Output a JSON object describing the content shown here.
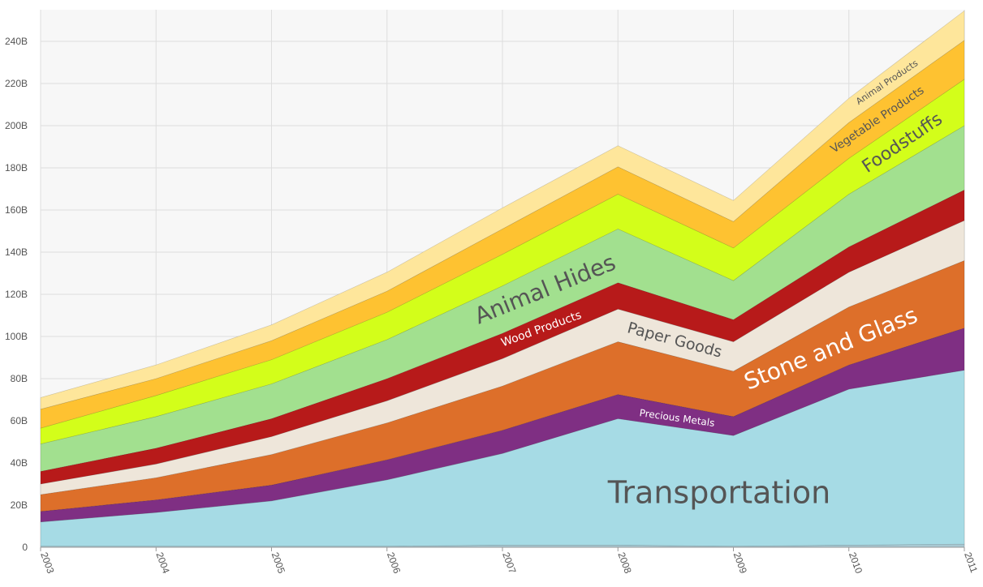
{
  "chart_data": {
    "type": "area",
    "stacked": true,
    "title": "",
    "xlabel": "",
    "ylabel": "",
    "x": [
      "2003",
      "2004",
      "2005",
      "2006",
      "2007",
      "2008",
      "2009",
      "2010",
      "2011"
    ],
    "ylim": [
      0,
      255
    ],
    "yticks": [
      0,
      20,
      40,
      60,
      80,
      100,
      120,
      140,
      160,
      180,
      200,
      220,
      240
    ],
    "ytick_labels": [
      "0",
      "20B",
      "40B",
      "60B",
      "80B",
      "100B",
      "120B",
      "140B",
      "160B",
      "180B",
      "200B",
      "220B",
      "240B"
    ],
    "grid": true,
    "legend": "none",
    "series": [
      {
        "color": "#a8c8d2",
        "values": [
          0.5,
          0.5,
          0.5,
          0.5,
          1,
          1,
          0.5,
          1,
          1.5
        ]
      },
      {
        "name": "Transportation",
        "color": "#a6dbe5",
        "values": [
          11.5,
          16,
          21.5,
          31.5,
          43.5,
          60,
          52.5,
          74,
          82.5
        ]
      },
      {
        "name": "Precious Metals",
        "color": "#7f2f83",
        "values": [
          5,
          6,
          7.5,
          9.5,
          11,
          11.5,
          9,
          11.5,
          20
        ]
      },
      {
        "name": "Stone and Glass",
        "color": "#dd6f2a",
        "values": [
          8,
          10.5,
          14.5,
          17.5,
          21,
          25,
          21.5,
          27.5,
          32
        ]
      },
      {
        "name": "Paper Goods",
        "color": "#eee6da",
        "values": [
          5,
          6.5,
          8.5,
          10.5,
          13,
          15.5,
          14,
          16.5,
          19
        ]
      },
      {
        "name": "Wood Products",
        "color": "#b71a1a",
        "values": [
          6,
          7.5,
          8.5,
          10.5,
          12,
          12.5,
          10.5,
          12,
          14.5
        ]
      },
      {
        "name": "Animal Hides",
        "color": "#a2e08f",
        "values": [
          13,
          15,
          16.5,
          18.5,
          22.5,
          25.5,
          18.5,
          25,
          30.5
        ]
      },
      {
        "name": "Foodstuffs",
        "color": "#d3fe1a",
        "values": [
          7.5,
          10,
          11.5,
          13,
          15,
          16.5,
          15.5,
          17,
          22
        ]
      },
      {
        "name": "Vegetable Products",
        "color": "#fec231",
        "values": [
          9,
          8,
          9,
          10,
          12,
          13,
          12.5,
          17,
          18.5
        ]
      },
      {
        "name": "Animal Products",
        "color": "#fee69b",
        "values": [
          5.5,
          6.5,
          7.5,
          9,
          10,
          10,
          10,
          11.5,
          14
        ]
      }
    ]
  }
}
